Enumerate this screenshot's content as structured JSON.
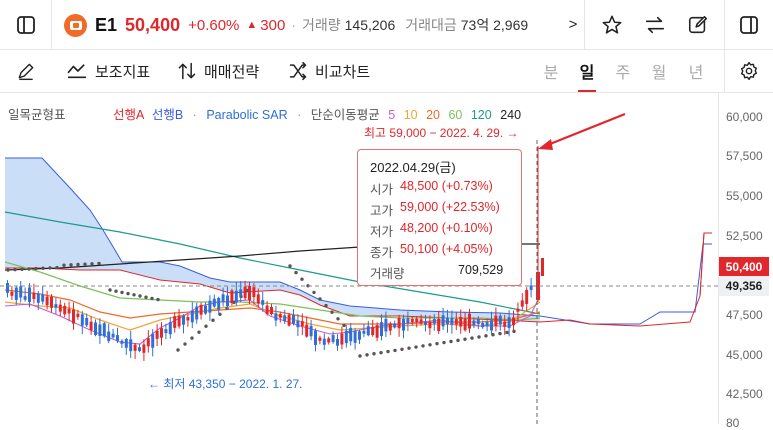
{
  "header": {
    "name": "E1",
    "price": "50,400",
    "change_pct": "+0.60%",
    "change_arrow": "▲",
    "change_abs": "300",
    "volume_label": "거래량",
    "volume_value": "145,206",
    "turnover_label": "거래대금",
    "turnover_value": "73억 2,969",
    "separator": "·",
    "more": ">"
  },
  "toolbar": {
    "indicator_label": "보조지표",
    "strategy_label": "매매전략",
    "compare_label": "비교차트",
    "periods": [
      "분",
      "일",
      "주",
      "월",
      "년"
    ],
    "active_period": "일"
  },
  "legend": {
    "ichimoku": "일목균형표",
    "leading_a": "선행A",
    "leading_b": "선행B",
    "sep1": "·",
    "sar": "Parabolic SAR",
    "sep2": "·",
    "ma_label": "단순이동평균",
    "ma_5": "5",
    "ma_10": "10",
    "ma_20": "20",
    "ma_60": "60",
    "ma_120": "120",
    "ma_240": "240"
  },
  "axis": {
    "ticks": [
      "60,000",
      "57,500",
      "55,000",
      "52,500",
      "47,500",
      "45,000",
      "42,500",
      "80"
    ],
    "current_price": "50,400",
    "crosshair_price": "49,356"
  },
  "annotations": {
    "high": "최고 59,000 − 2022. 4. 29. →",
    "low": "← 최저 43,350 − 2022. 1. 27."
  },
  "tooltip": {
    "date": "2022.04.29(금)",
    "rows": [
      {
        "label": "시가",
        "value": "48,500 (+0.73%)"
      },
      {
        "label": "고가",
        "value": "59,000 (+22.53%)"
      },
      {
        "label": "저가",
        "value": "48,200 (+0.10%)"
      },
      {
        "label": "종가",
        "value": "50,100 (+4.05%)"
      }
    ],
    "volume_label": "거래량",
    "volume_value": "709,529"
  },
  "colors": {
    "up": "#e0272b",
    "down": "#2f6fd6",
    "accent_logo": "#f06a28",
    "ma5": "#c65bd6",
    "ma10": "#f2a533",
    "ma20": "#f06a28",
    "ma60": "#7cc25a",
    "ma120": "#1d9a8a",
    "ma240": "#222222",
    "leading_a": "#e0272b",
    "leading_b": "#3d5ae0",
    "cloud": "#b8d4f4"
  },
  "icons": [
    "sidebar-left-icon",
    "star-icon",
    "swap-icon",
    "edit-icon",
    "sidebar-right-icon",
    "pencil-icon",
    "indicator-icon",
    "strategy-icon",
    "compare-icon",
    "settings-icon"
  ]
}
